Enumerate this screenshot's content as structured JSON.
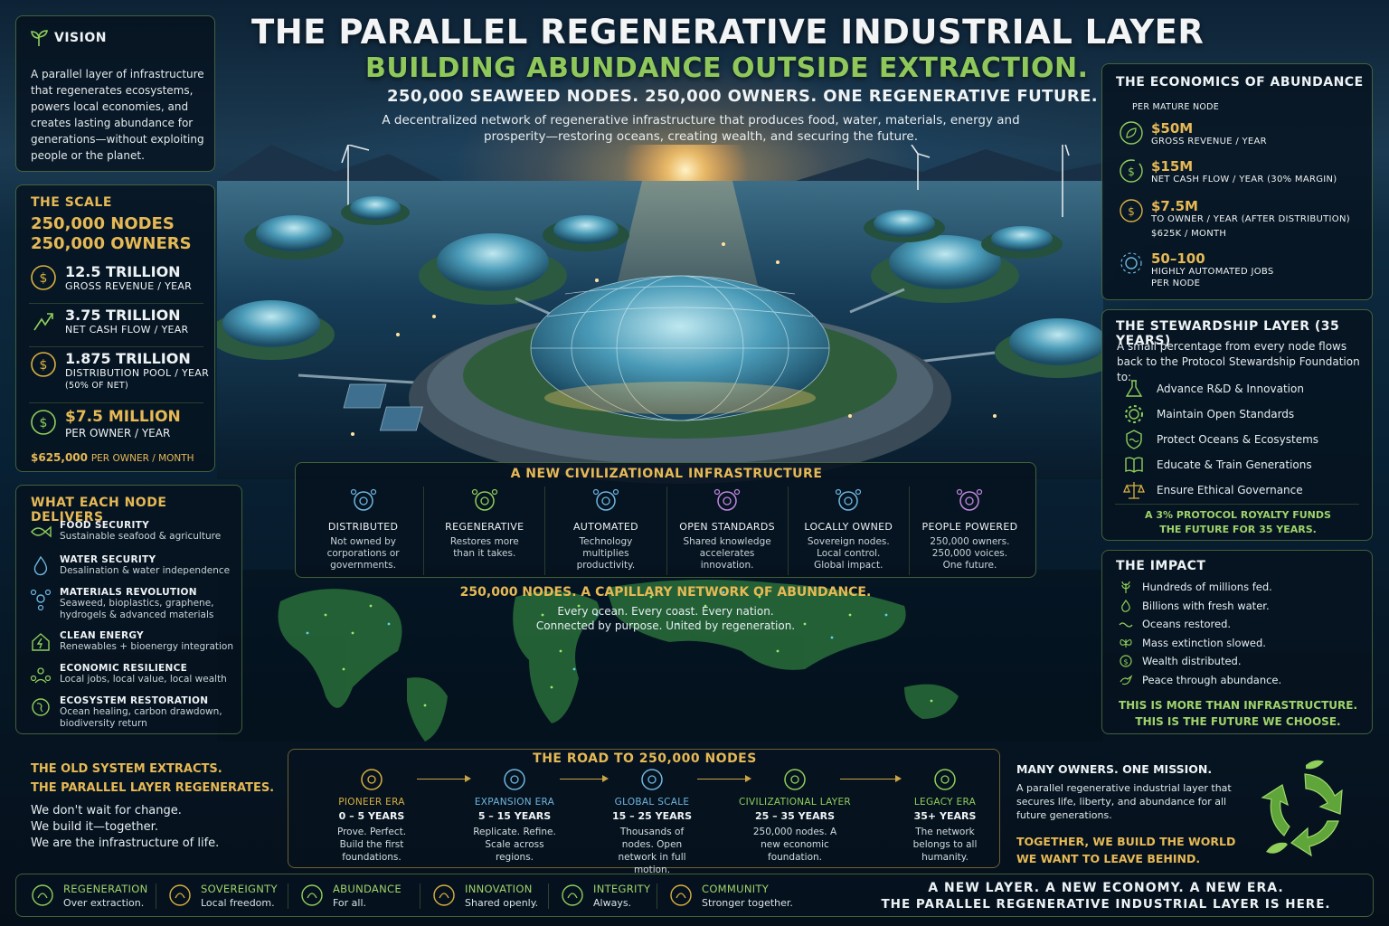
{
  "header": {
    "title": "THE PARALLEL REGENERATIVE INDUSTRIAL LAYER",
    "subtitle": "BUILDING ABUNDANCE OUTSIDE EXTRACTION.",
    "tagline": "250,000 SEAWEED NODES. 250,000 OWNERS. ONE REGENERATIVE FUTURE.",
    "intro": "A decentralized network of regenerative infrastructure that produces food, water, materials, energy and prosperity—restoring oceans, creating wealth, and securing the future."
  },
  "vision": {
    "title": "VISION",
    "text": "A parallel layer of infrastructure that regenerates ecosystems, powers local economies, and creates lasting abundance for generations—without exploiting people or the planet."
  },
  "scale": {
    "title": "THE SCALE",
    "nodes": "250,000 NODES",
    "owners": "250,000 OWNERS",
    "items": [
      {
        "value": "12.5 TRILLION",
        "label": "GROSS REVENUE / YEAR",
        "note": ""
      },
      {
        "value": "3.75 TRILLION",
        "label": "NET CASH FLOW / YEAR",
        "note": ""
      },
      {
        "value": "1.875 TRILLION",
        "label": "DISTRIBUTION POOL / YEAR",
        "note": "(50% OF NET)"
      },
      {
        "value": "$7.5 MILLION",
        "label": "PER OWNER / YEAR",
        "note": ""
      }
    ],
    "footer_value": "$625,000",
    "footer_label": "PER OWNER / MONTH"
  },
  "delivers": {
    "title": "WHAT EACH NODE DELIVERS",
    "items": [
      {
        "title": "FOOD SECURITY",
        "desc": "Sustainable seafood & agriculture"
      },
      {
        "title": "WATER SECURITY",
        "desc": "Desalination & water independence"
      },
      {
        "title": "MATERIALS REVOLUTION",
        "desc": "Seaweed, bioplastics, graphene, hydrogels & advanced materials"
      },
      {
        "title": "CLEAN ENERGY",
        "desc": "Renewables + bioenergy integration"
      },
      {
        "title": "ECONOMIC RESILIENCE",
        "desc": "Local jobs, local value, local wealth"
      },
      {
        "title": "ECOSYSTEM RESTORATION",
        "desc": "Ocean healing, carbon drawdown, biodiversity return"
      }
    ]
  },
  "economics": {
    "title": "THE ECONOMICS OF ABUNDANCE",
    "subtitle": "PER MATURE NODE",
    "items": [
      {
        "value": "$50M",
        "label": "GROSS REVENUE / YEAR",
        "extra": ""
      },
      {
        "value": "$15M",
        "label": "NET CASH FLOW / YEAR (30% MARGIN)",
        "extra": ""
      },
      {
        "value": "$7.5M",
        "label": "TO OWNER / YEAR (AFTER DISTRIBUTION)",
        "extra": "$625K / MONTH"
      },
      {
        "value": "50–100",
        "label": "HIGHLY AUTOMATED JOBS",
        "extra": "PER NODE"
      }
    ]
  },
  "stewardship": {
    "title": "THE STEWARDSHIP LAYER (35 YEARS)",
    "intro": "A small percentage from every node flows back to the Protocol Stewardship Foundation to:",
    "items": [
      "Advance R&D & Innovation",
      "Maintain Open Standards",
      "Protect Oceans & Ecosystems",
      "Educate & Train Generations",
      "Ensure Ethical Governance"
    ],
    "footer1": "A 3% PROTOCOL ROYALTY FUNDS",
    "footer2": "THE FUTURE FOR 35 YEARS."
  },
  "impact": {
    "title": "THE IMPACT",
    "items": [
      "Hundreds of millions fed.",
      "Billions with fresh water.",
      "Oceans restored.",
      "Mass extinction slowed.",
      "Wealth distributed.",
      "Peace through abundance."
    ],
    "footer1": "THIS IS MORE THAN INFRASTRUCTURE.",
    "footer2": "THIS IS THE FUTURE WE CHOOSE."
  },
  "civil": {
    "title": "A NEW CIVILIZATIONAL INFRASTRUCTURE",
    "items": [
      {
        "title": "DISTRIBUTED",
        "desc": "Not owned by corporations or governments.",
        "color": "#6fb6e0"
      },
      {
        "title": "REGENERATIVE",
        "desc": "Restores more than it takes.",
        "color": "#8fcf5a"
      },
      {
        "title": "AUTOMATED",
        "desc": "Technology multiplies productivity.",
        "color": "#6fb6e0"
      },
      {
        "title": "OPEN STANDARDS",
        "desc": "Shared knowledge accelerates innovation.",
        "color": "#c08ae0"
      },
      {
        "title": "LOCALLY OWNED",
        "desc": "Sovereign nodes. Local control. Global impact.",
        "color": "#6fb6e0"
      },
      {
        "title": "PEOPLE POWERED",
        "desc": "250,000 owners. 250,000 voices. One future.",
        "color": "#c08ae0"
      }
    ]
  },
  "network": {
    "title": "250,000 NODES. A CAPILLARY NETWORK OF ABUNDANCE.",
    "line1": "Every ocean. Every coast. Every nation.",
    "line2": "Connected by purpose. United by regeneration."
  },
  "old_system": {
    "line1": "THE OLD SYSTEM EXTRACTS.",
    "line2": "THE PARALLEL LAYER REGENERATES.",
    "p1": "We don't wait for change.",
    "p2": "We build it—together.",
    "p3": "We are the infrastructure of life."
  },
  "road": {
    "title": "THE ROAD TO 250,000 NODES",
    "eras": [
      {
        "name": "PIONEER ERA",
        "years": "0 – 5 YEARS",
        "desc": "Prove. Perfect. Build the first foundations.",
        "color": "#d8b040"
      },
      {
        "name": "EXPANSION ERA",
        "years": "5 – 15 YEARS",
        "desc": "Replicate. Refine. Scale across regions.",
        "color": "#6fb6e0"
      },
      {
        "name": "GLOBAL SCALE",
        "years": "15 – 25 YEARS",
        "desc": "Thousands of nodes. Open network in full motion.",
        "color": "#6fb6e0"
      },
      {
        "name": "CIVILIZATIONAL LAYER",
        "years": "25 – 35 YEARS",
        "desc": "250,000 nodes. A new economic foundation.",
        "color": "#8fcf5a"
      },
      {
        "name": "LEGACY ERA",
        "years": "35+ YEARS",
        "desc": "The network belongs to all humanity.",
        "color": "#8fcf5a"
      }
    ]
  },
  "mission": {
    "title": "MANY OWNERS. ONE MISSION.",
    "text": "A parallel regenerative industrial layer that secures life, liberty, and abundance for all future generations.",
    "cta1": "TOGETHER, WE BUILD THE WORLD",
    "cta2": "WE WANT TO LEAVE BEHIND."
  },
  "values": [
    {
      "title": "REGENERATION",
      "desc": "Over extraction."
    },
    {
      "title": "SOVEREIGNTY",
      "desc": "Local freedom."
    },
    {
      "title": "ABUNDANCE",
      "desc": "For all."
    },
    {
      "title": "INNOVATION",
      "desc": "Shared openly."
    },
    {
      "title": "INTEGRITY",
      "desc": "Always."
    },
    {
      "title": "COMMUNITY",
      "desc": "Stronger together."
    }
  ],
  "closing": {
    "line1": "A NEW LAYER. A NEW ECONOMY. A NEW ERA.",
    "line2": "THE PARALLEL REGENERATIVE INDUSTRIAL LAYER IS HERE."
  }
}
